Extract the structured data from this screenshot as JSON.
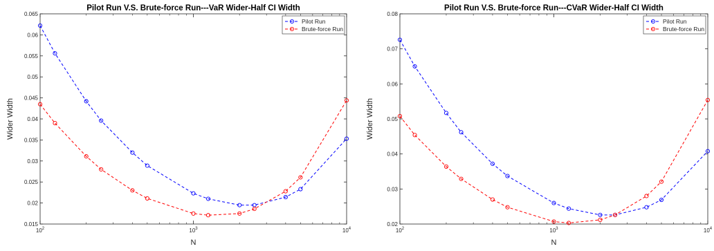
{
  "chart_data": [
    {
      "type": "line",
      "title": "Pilot Run V.S. Brute-force Run---VaR Wider-Half CI Width",
      "xlabel": "N",
      "ylabel": "Wider Width",
      "xscale": "log",
      "xlim": [
        100,
        10000
      ],
      "ylim": [
        0.015,
        0.065
      ],
      "yticks": [
        "0.015",
        "0.02",
        "0.025",
        "0.03",
        "0.035",
        "0.04",
        "0.045",
        "0.05",
        "0.055",
        "0.06",
        "0.065"
      ],
      "x": [
        100,
        125,
        200,
        250,
        400,
        500,
        1000,
        1250,
        2000,
        2500,
        4000,
        5000,
        10000
      ],
      "series": [
        {
          "name": "Pilot Run",
          "color": "#0000ff",
          "values": [
            0.0622,
            0.0556,
            0.0442,
            0.0396,
            0.032,
            0.0289,
            0.0223,
            0.021,
            0.0195,
            0.0195,
            0.0214,
            0.0233,
            0.0353
          ]
        },
        {
          "name": "Brute-force Run",
          "color": "#ff0000",
          "values": [
            0.0435,
            0.039,
            0.0311,
            0.028,
            0.023,
            0.0211,
            0.0175,
            0.0171,
            0.0175,
            0.0186,
            0.0228,
            0.0261,
            0.0444
          ]
        }
      ],
      "legend": "top-right",
      "grid": false
    },
    {
      "type": "line",
      "title": "Pilot Run V.S. Brute-force Run---CVaR Wider-Half CI Width",
      "xlabel": "N",
      "ylabel": "Wider Width",
      "xscale": "log",
      "xlim": [
        100,
        10000
      ],
      "ylim": [
        0.02,
        0.08
      ],
      "yticks": [
        "0.02",
        "0.03",
        "0.04",
        "0.05",
        "0.06",
        "0.07",
        "0.08"
      ],
      "x": [
        100,
        125,
        200,
        250,
        400,
        500,
        1000,
        1250,
        2000,
        2500,
        4000,
        5000,
        10000
      ],
      "series": [
        {
          "name": "Pilot Run",
          "color": "#0000ff",
          "values": [
            0.0726,
            0.065,
            0.0517,
            0.0462,
            0.0372,
            0.0337,
            0.026,
            0.0244,
            0.0226,
            0.0226,
            0.0248,
            0.0269,
            0.0408
          ]
        },
        {
          "name": "Brute-force Run",
          "color": "#ff0000",
          "values": [
            0.0508,
            0.0454,
            0.0364,
            0.0329,
            0.027,
            0.0248,
            0.0207,
            0.0203,
            0.0212,
            0.0226,
            0.028,
            0.0321,
            0.0554
          ]
        }
      ],
      "legend": "top-right",
      "grid": false
    }
  ]
}
